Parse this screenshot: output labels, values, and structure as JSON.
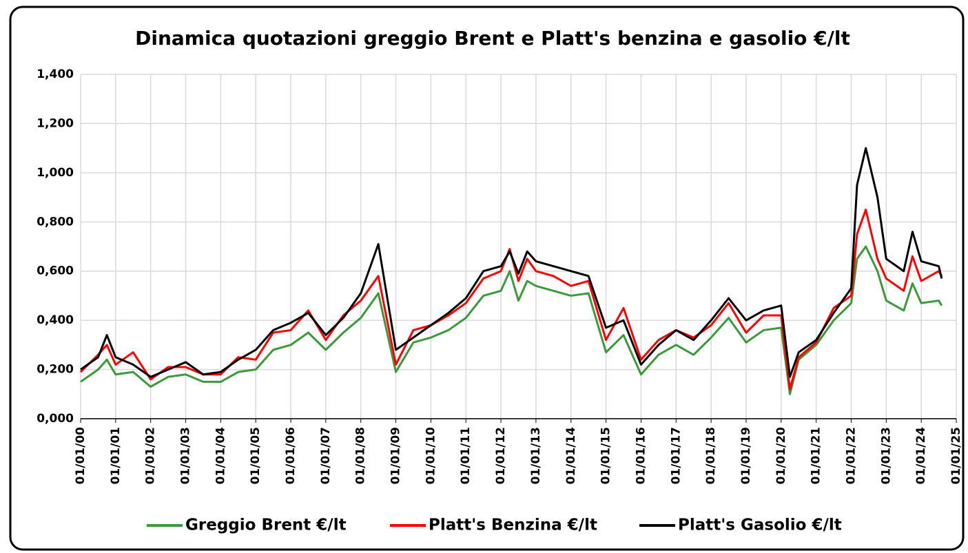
{
  "chart_data": {
    "type": "line",
    "title": "Dinamica quotazioni greggio Brent e Platt's benzina e gasolio €/lt",
    "x": [
      "01/01/00",
      "01/07/00",
      "01/10/00",
      "01/01/01",
      "01/07/01",
      "01/01/02",
      "01/07/02",
      "01/01/03",
      "01/07/03",
      "01/01/04",
      "01/07/04",
      "01/01/05",
      "01/07/05",
      "01/01/06",
      "01/07/06",
      "01/01/07",
      "01/07/07",
      "01/01/08",
      "01/07/08",
      "01/01/09",
      "01/07/09",
      "01/01/10",
      "01/07/10",
      "01/01/11",
      "01/07/11",
      "01/01/12",
      "01/04/12",
      "01/07/12",
      "01/10/12",
      "01/01/13",
      "01/07/13",
      "01/01/14",
      "01/07/14",
      "01/01/15",
      "01/07/15",
      "01/01/16",
      "01/07/16",
      "01/01/17",
      "01/07/17",
      "01/01/18",
      "01/07/18",
      "01/01/19",
      "01/07/19",
      "01/01/20",
      "01/04/20",
      "01/07/20",
      "01/01/21",
      "01/07/21",
      "01/01/22",
      "01/03/22",
      "01/06/22",
      "01/10/22",
      "01/01/23",
      "01/07/23",
      "01/10/23",
      "01/01/24",
      "01/07/24",
      "01/08/24"
    ],
    "series": [
      {
        "name": "Greggio Brent €/lt",
        "color": "#3a9a3a",
        "values": [
          0.15,
          0.2,
          0.24,
          0.18,
          0.19,
          0.13,
          0.17,
          0.18,
          0.15,
          0.15,
          0.19,
          0.2,
          0.28,
          0.3,
          0.35,
          0.28,
          0.35,
          0.41,
          0.51,
          0.19,
          0.31,
          0.33,
          0.36,
          0.41,
          0.5,
          0.52,
          0.6,
          0.48,
          0.56,
          0.54,
          0.52,
          0.5,
          0.51,
          0.27,
          0.34,
          0.18,
          0.26,
          0.3,
          0.26,
          0.33,
          0.41,
          0.31,
          0.36,
          0.37,
          0.1,
          0.24,
          0.3,
          0.4,
          0.47,
          0.65,
          0.7,
          0.6,
          0.48,
          0.44,
          0.55,
          0.47,
          0.48,
          0.46
        ]
      },
      {
        "name": "Platt's Benzina €/lt",
        "color": "#ff0000",
        "values": [
          0.19,
          0.26,
          0.3,
          0.22,
          0.27,
          0.16,
          0.21,
          0.21,
          0.18,
          0.18,
          0.25,
          0.24,
          0.35,
          0.36,
          0.44,
          0.32,
          0.42,
          0.48,
          0.58,
          0.22,
          0.36,
          0.38,
          0.42,
          0.47,
          0.57,
          0.6,
          0.69,
          0.56,
          0.65,
          0.6,
          0.58,
          0.54,
          0.56,
          0.32,
          0.45,
          0.24,
          0.32,
          0.36,
          0.33,
          0.38,
          0.47,
          0.35,
          0.42,
          0.42,
          0.12,
          0.25,
          0.31,
          0.45,
          0.5,
          0.75,
          0.85,
          0.65,
          0.57,
          0.52,
          0.66,
          0.56,
          0.6,
          0.58
        ]
      },
      {
        "name": "Platt's Gasolio €/lt",
        "color": "#000000",
        "values": [
          0.2,
          0.25,
          0.34,
          0.25,
          0.22,
          0.17,
          0.2,
          0.23,
          0.18,
          0.19,
          0.24,
          0.28,
          0.36,
          0.39,
          0.43,
          0.34,
          0.41,
          0.51,
          0.71,
          0.28,
          0.33,
          0.38,
          0.43,
          0.49,
          0.6,
          0.62,
          0.68,
          0.59,
          0.68,
          0.64,
          0.62,
          0.6,
          0.58,
          0.37,
          0.4,
          0.22,
          0.3,
          0.36,
          0.32,
          0.4,
          0.49,
          0.4,
          0.44,
          0.46,
          0.17,
          0.27,
          0.32,
          0.43,
          0.53,
          0.95,
          1.1,
          0.9,
          0.65,
          0.6,
          0.76,
          0.64,
          0.62,
          0.57
        ]
      }
    ],
    "xlim": [
      "01/01/00",
      "01/01/25"
    ],
    "xticks": [
      "01/01/00",
      "01/01/01",
      "01/01/02",
      "01/01/03",
      "01/01/04",
      "01/01/05",
      "01/01/06",
      "01/01/07",
      "01/01/08",
      "01/01/09",
      "01/01/10",
      "01/01/11",
      "01/01/12",
      "01/01/13",
      "01/01/14",
      "01/01/15",
      "01/01/16",
      "01/01/17",
      "01/01/18",
      "01/01/19",
      "01/01/20",
      "01/01/21",
      "01/01/22",
      "01/01/23",
      "01/01/24",
      "01/01/25"
    ],
    "ylim": [
      0,
      1.4
    ],
    "yticks": [
      {
        "value": 0,
        "label": "0,000"
      },
      {
        "value": 0.2,
        "label": "0,200"
      },
      {
        "value": 0.4,
        "label": "0,400"
      },
      {
        "value": 0.6,
        "label": "0,600"
      },
      {
        "value": 0.8,
        "label": "0,800"
      },
      {
        "value": 1.0,
        "label": "1,000"
      },
      {
        "value": 1.2,
        "label": "1,200"
      },
      {
        "value": 1.4,
        "label": "1,400"
      }
    ],
    "grid": true,
    "legend": "bottom"
  }
}
